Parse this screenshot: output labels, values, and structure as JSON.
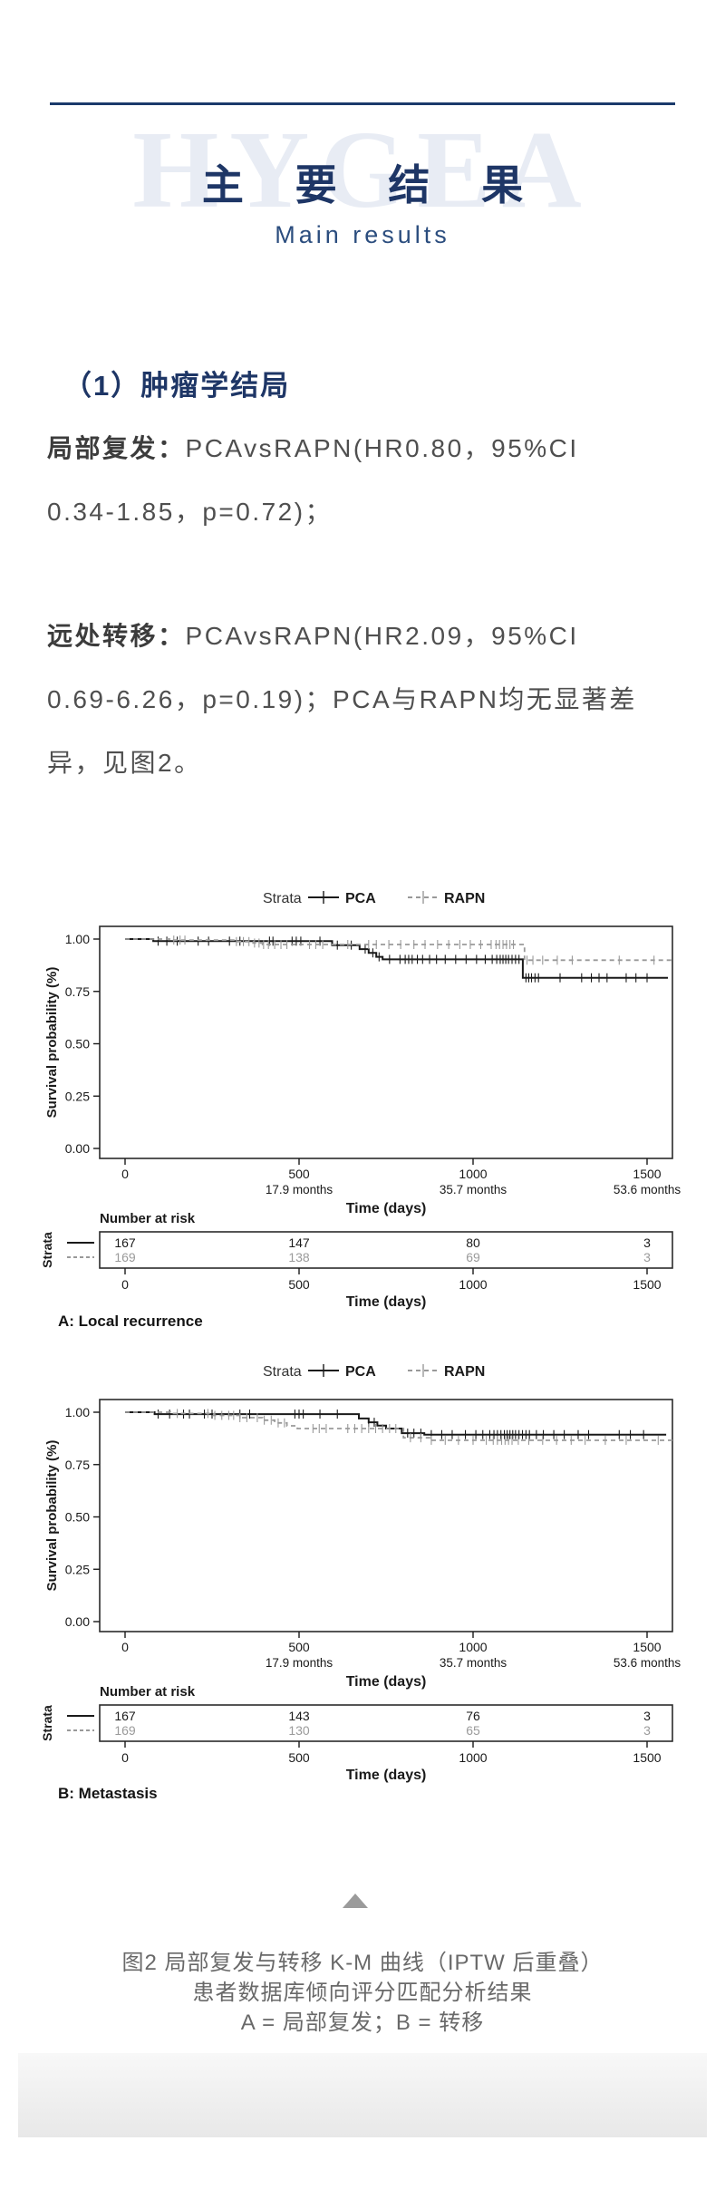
{
  "header": {
    "watermark": "HYGEA",
    "title": "主 要 结 果",
    "subtitle": "Main results"
  },
  "section": {
    "heading": "（1）肿瘤学结局"
  },
  "paragraphs": [
    {
      "lead": "局部复发：",
      "lines": [
        "PCAvsRAPN(HR0.80，95%CI",
        "0.34-1.85，p=0.72)；"
      ]
    },
    {
      "lead": "远处转移：",
      "lines": [
        "PCAvsRAPN(HR2.09，95%CI",
        "0.69-6.26，p=0.19)；PCA与RAPN均无显著差",
        "异，见图2。"
      ]
    }
  ],
  "colors": {
    "navy": "#1e3666",
    "rule": "#1b3a6b",
    "ink": "#1a1a1a",
    "rapn_gray": "#999999",
    "body_text": "#4f4f4f",
    "caption_text": "#696969"
  },
  "chart_data": [
    {
      "type": "line",
      "subtype": "kaplan-meier",
      "panel_label": "A: Local recurrence",
      "legend": {
        "label": "Strata",
        "series": [
          "PCA",
          "RAPN"
        ],
        "position": "top"
      },
      "ylabel": "Survival probability (%)",
      "yticks": [
        "1.00",
        "0.75",
        "0.50",
        "0.25",
        "0.00"
      ],
      "ytick_values": [
        1.0,
        0.75,
        0.5,
        0.25,
        0.0
      ],
      "ylim": [
        0,
        1
      ],
      "xlabel": "Time (days)",
      "xticks": [
        0,
        500,
        1000,
        1500
      ],
      "xtick_sublabels": [
        "",
        "17.9 months",
        "35.7 months",
        "53.6 months"
      ],
      "xlim": [
        0,
        1573
      ],
      "grid": false,
      "number_at_risk_label": "Number at risk",
      "strata_axis_label": "Strata",
      "risk_rows": [
        {
          "series": "PCA",
          "values": [
            "167",
            "147",
            "80",
            "3"
          ]
        },
        {
          "series": "RAPN",
          "values": [
            "169",
            "138",
            "69",
            "3"
          ]
        }
      ],
      "series": [
        {
          "name": "PCA",
          "style": "solid",
          "color": "#1a1a1a",
          "steps": [
            [
              0,
              1.0
            ],
            [
              81,
              0.99
            ],
            [
              595,
              0.971
            ],
            [
              674,
              0.952
            ],
            [
              700,
              0.934
            ],
            [
              722,
              0.915
            ],
            [
              740,
              0.903
            ],
            [
              1143,
              0.815
            ],
            [
              1560,
              0.815
            ]
          ],
          "censors": [
            95,
            120,
            150,
            210,
            240,
            300,
            330,
            415,
            425,
            480,
            492,
            505,
            560,
            610,
            650,
            690,
            712,
            730,
            760,
            790,
            805,
            815,
            825,
            840,
            855,
            875,
            895,
            920,
            950,
            980,
            1010,
            1035,
            1055,
            1068,
            1078,
            1086,
            1094,
            1102,
            1112,
            1122,
            1132,
            1152,
            1160,
            1168,
            1178,
            1188,
            1250,
            1312,
            1340,
            1362,
            1385,
            1440,
            1468,
            1500
          ]
        },
        {
          "name": "RAPN",
          "style": "dashed",
          "color": "#999999",
          "steps": [
            [
              0,
              1.0
            ],
            [
              133,
              0.995
            ],
            [
              315,
              0.988
            ],
            [
              368,
              0.981
            ],
            [
              395,
              0.974
            ],
            [
              1148,
              0.899
            ],
            [
              1573,
              0.899
            ]
          ],
          "censors": [
            140,
            158,
            172,
            320,
            340,
            356,
            372,
            385,
            398,
            412,
            430,
            448,
            465,
            530,
            548,
            568,
            640,
            700,
            722,
            758,
            792,
            830,
            862,
            898,
            930,
            962,
            992,
            1022,
            1052,
            1066,
            1076,
            1086,
            1096,
            1106,
            1116,
            1155,
            1172,
            1200,
            1242,
            1285,
            1420,
            1520
          ]
        }
      ]
    },
    {
      "type": "line",
      "subtype": "kaplan-meier",
      "panel_label": "B: Metastasis",
      "legend": {
        "label": "Strata",
        "series": [
          "PCA",
          "RAPN"
        ],
        "position": "top"
      },
      "ylabel": "Survival probability (%)",
      "yticks": [
        "1.00",
        "0.75",
        "0.50",
        "0.25",
        "0.00"
      ],
      "ytick_values": [
        1.0,
        0.75,
        0.5,
        0.25,
        0.0
      ],
      "ylim": [
        0,
        1
      ],
      "xlabel": "Time (days)",
      "xticks": [
        0,
        500,
        1000,
        1500
      ],
      "xtick_sublabels": [
        "",
        "17.9 months",
        "35.7 months",
        "53.6 months"
      ],
      "xlim": [
        0,
        1573
      ],
      "grid": false,
      "number_at_risk_label": "Number at risk",
      "strata_axis_label": "Strata",
      "risk_rows": [
        {
          "series": "PCA",
          "values": [
            "167",
            "143",
            "76",
            "3"
          ]
        },
        {
          "series": "RAPN",
          "values": [
            "169",
            "130",
            "65",
            "3"
          ]
        }
      ],
      "series": [
        {
          "name": "PCA",
          "style": "solid",
          "color": "#1a1a1a",
          "steps": [
            [
              0,
              1.0
            ],
            [
              85,
              0.991
            ],
            [
              672,
              0.97
            ],
            [
              700,
              0.952
            ],
            [
              725,
              0.936
            ],
            [
              750,
              0.922
            ],
            [
              795,
              0.9
            ],
            [
              860,
              0.893
            ],
            [
              1555,
              0.893
            ]
          ],
          "censors": [
            95,
            128,
            168,
            185,
            228,
            250,
            330,
            358,
            488,
            500,
            512,
            560,
            610,
            700,
            716,
            812,
            830,
            850,
            880,
            910,
            940,
            978,
            1008,
            1028,
            1048,
            1060,
            1070,
            1080,
            1090,
            1098,
            1106,
            1114,
            1122,
            1132,
            1142,
            1152,
            1162,
            1182,
            1202,
            1232,
            1262,
            1302,
            1332,
            1420,
            1452,
            1490
          ]
        },
        {
          "name": "RAPN",
          "style": "dashed",
          "color": "#999999",
          "steps": [
            [
              0,
              1.0
            ],
            [
              130,
              0.994
            ],
            [
              255,
              0.985
            ],
            [
              330,
              0.974
            ],
            [
              395,
              0.962
            ],
            [
              430,
              0.949
            ],
            [
              465,
              0.935
            ],
            [
              495,
              0.922
            ],
            [
              800,
              0.878
            ],
            [
              880,
              0.866
            ],
            [
              1573,
              0.866
            ]
          ],
          "censors": [
            150,
            238,
            258,
            278,
            298,
            312,
            330,
            350,
            380,
            400,
            420,
            440,
            458,
            540,
            558,
            578,
            640,
            660,
            680,
            700,
            720,
            740,
            760,
            778,
            820,
            850,
            880,
            920,
            958,
            1000,
            1038,
            1058,
            1070,
            1082,
            1092,
            1102,
            1112,
            1130,
            1160,
            1200,
            1240,
            1282,
            1322,
            1380,
            1440,
            1532
          ]
        }
      ]
    }
  ],
  "caption": {
    "lines": [
      "图2 局部复发与转移 K-M 曲线（IPTW 后重叠）",
      "患者数据库倾向评分匹配分析结果",
      "A = 局部复发；B = 转移"
    ]
  }
}
